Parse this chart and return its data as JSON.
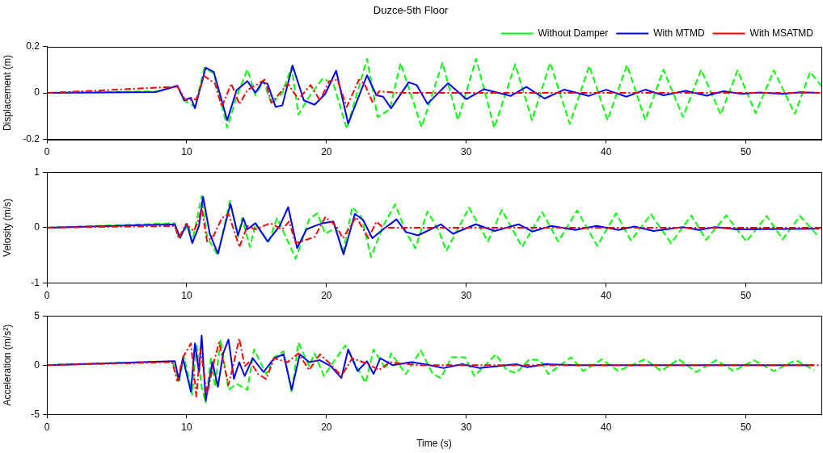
{
  "chart_data": [
    {
      "type": "line",
      "title": "Duzce-5th Floor",
      "ylabel": "Displacement (m)",
      "xlim": [
        0,
        55.4
      ],
      "xticks": [
        0,
        10,
        20,
        30,
        40,
        50
      ],
      "ylim": [
        -0.2,
        0.2
      ],
      "yticks": [
        -0.2,
        0,
        0.2
      ],
      "legend": "top right",
      "marker": "none",
      "series": [
        {
          "name": "Without Damper",
          "color": "#00ff00",
          "line_style": "dashed",
          "x": [
            0,
            7.8,
            9.34,
            9.82,
            10.59,
            11.26,
            11.94,
            12.9,
            13.57,
            14.34,
            14.92,
            15.5,
            16.07,
            16.84,
            17.51,
            17.99,
            18.76,
            19.72,
            20.49,
            21.45,
            22.9,
            23.66,
            24.53,
            25.3,
            26.8,
            28.3,
            29.4,
            30.7,
            32.0,
            33.5,
            34.7,
            36.0,
            37.4,
            38.8,
            40.1,
            41.5,
            42.8,
            44.1,
            45.5,
            46.8,
            48.2,
            49.4,
            50.7,
            52.0,
            53.5,
            54.6,
            55.4
          ],
          "values": [
            0,
            0.007,
            0.029,
            -0.032,
            -0.06,
            0.107,
            0.084,
            -0.149,
            -0.016,
            0.101,
            -0.01,
            0.051,
            -0.049,
            0.001,
            0.112,
            -0.093,
            -0.016,
            0.062,
            0.04,
            -0.154,
            0.146,
            -0.104,
            -0.071,
            0.129,
            -0.147,
            0.13,
            -0.117,
            0.147,
            -0.15,
            0.123,
            -0.117,
            0.13,
            -0.133,
            0.117,
            -0.117,
            0.12,
            -0.117,
            0.1,
            -0.103,
            0.1,
            -0.093,
            0.097,
            -0.087,
            0.097,
            -0.09,
            0.09,
            0.03
          ]
        },
        {
          "name": "With MTMD",
          "color": "#0000ff",
          "line_style": "solid",
          "x": [
            0,
            7.8,
            9.34,
            9.82,
            10.3,
            10.59,
            11.36,
            11.94,
            12.9,
            13.57,
            14.34,
            14.92,
            15.4,
            15.78,
            16.36,
            16.84,
            17.57,
            18.38,
            19.15,
            19.91,
            20.69,
            21.55,
            22.9,
            23.57,
            24.05,
            24.62,
            25.88,
            26.45,
            27.22,
            28.7,
            30.0,
            31.26,
            33.17,
            34.3,
            35.6,
            37.0,
            38.75,
            40.0,
            41.45,
            42.8,
            44.1,
            45.7,
            47.2,
            48.4,
            49.7,
            51.0,
            52.6,
            53.9,
            55.3
          ],
          "values": [
            0,
            0.004,
            0.031,
            -0.032,
            -0.021,
            -0.066,
            0.109,
            0.09,
            -0.118,
            0.012,
            0.051,
            0.001,
            0.046,
            0.04,
            -0.06,
            -0.054,
            0.118,
            -0.032,
            -0.051,
            -0.004,
            0.096,
            -0.132,
            0.076,
            -0.01,
            -0.016,
            -0.066,
            0.046,
            0.034,
            -0.047,
            0.042,
            -0.027,
            0.016,
            -0.013,
            0.026,
            -0.024,
            0.014,
            -0.013,
            0.014,
            -0.016,
            0.014,
            -0.01,
            0.009,
            -0.012,
            0.007,
            -0.004,
            0.002,
            -0.004,
            0.003,
            0
          ]
        },
        {
          "name": "With MSATMD",
          "color": "#ff0000",
          "line_style": "dashdot",
          "x": [
            0,
            9.34,
            9.92,
            10.69,
            11.26,
            12.03,
            12.51,
            13.19,
            13.77,
            14.34,
            15.59,
            16.07,
            17.23,
            17.99,
            18.86,
            19.53,
            20.2,
            20.78,
            21.45,
            22.32,
            22.71,
            23.28,
            23.76,
            25.3,
            55.4
          ],
          "values": [
            0,
            0.027,
            -0.032,
            -0.027,
            0.073,
            0.04,
            -0.06,
            0.04,
            -0.049,
            0.012,
            0.057,
            -0.043,
            0.04,
            -0.027,
            0.034,
            -0.032,
            0.051,
            0.057,
            -0.06,
            0.057,
            0.04,
            -0.038,
            0.007,
            0,
            0
          ]
        }
      ]
    },
    {
      "type": "line",
      "ylabel": "Velosity (m/s)",
      "xlim": [
        0,
        55.4
      ],
      "xticks": [
        0,
        10,
        20,
        30,
        40,
        50
      ],
      "ylim": [
        -1,
        1
      ],
      "yticks": [
        -1,
        0,
        1
      ],
      "marker": "none",
      "series": [
        {
          "color": "#00ff00",
          "line_style": "dashed",
          "x": [
            0,
            9.15,
            9.44,
            10.11,
            10.4,
            11.07,
            11.46,
            12.23,
            13.09,
            13.67,
            13.96,
            14.53,
            14.92,
            15.88,
            16.46,
            16.84,
            17.8,
            18.76,
            19.34,
            19.91,
            20.69,
            21.17,
            21.84,
            22.51,
            23.18,
            24.05,
            24.91,
            25.68,
            26.36,
            27.22,
            27.99,
            28.57,
            30.2,
            31.54,
            32.55,
            33.99,
            35.43,
            36.58,
            37.93,
            39.37,
            40.71,
            41.77,
            43.21,
            44.65,
            46.1,
            47.15,
            48.6,
            50.04,
            51.48,
            52.63,
            53.88,
            55.23
          ],
          "values": [
            0,
            0.08,
            -0.21,
            0.06,
            -0.25,
            0.57,
            -0.17,
            -0.5,
            0.48,
            -0.17,
            0.17,
            -0.35,
            0.06,
            -0.25,
            0.17,
            -0.03,
            -0.56,
            0.15,
            0.26,
            -0.11,
            0,
            -0.47,
            0.37,
            0.19,
            -0.53,
            0.03,
            0.42,
            -0.08,
            -0.37,
            0.29,
            -0.03,
            -0.42,
            0.36,
            -0.25,
            0.32,
            -0.35,
            0.28,
            -0.25,
            0.31,
            -0.33,
            0.26,
            -0.23,
            0.24,
            -0.28,
            0.22,
            -0.22,
            0.22,
            -0.25,
            0.21,
            -0.21,
            0.21,
            -0.17
          ]
        },
        {
          "color": "#0000ff",
          "line_style": "solid",
          "x": [
            0,
            9.15,
            9.53,
            10.01,
            10.4,
            10.88,
            11.17,
            11.65,
            12.23,
            13.13,
            13.67,
            14.05,
            14.34,
            14.92,
            15.78,
            16.65,
            17.26,
            17.9,
            18.57,
            19.15,
            19.72,
            20.49,
            21.22,
            22.03,
            22.61,
            23.28,
            24.05,
            25.01,
            25.68,
            26.55,
            28.18,
            29.05,
            30.68,
            32.03,
            33.76,
            34.72,
            36.07,
            37.8,
            39.33,
            40.87,
            42.03,
            43.38,
            45.49,
            46.64,
            47.8,
            49.34,
            55.23
          ],
          "values": [
            0,
            0.06,
            -0.18,
            0.07,
            -0.28,
            0.03,
            0.56,
            -0.11,
            -0.47,
            0.43,
            -0.14,
            0.17,
            -0.03,
            0.08,
            -0.25,
            0.03,
            0.37,
            -0.37,
            -0.03,
            0.03,
            0.08,
            0.11,
            -0.48,
            0.25,
            0.14,
            -0.19,
            -0.03,
            0.15,
            -0.08,
            -0.14,
            0.06,
            -0.11,
            0.06,
            -0.06,
            0.06,
            -0.07,
            0.03,
            -0.04,
            0.03,
            -0.04,
            0.02,
            -0.06,
            0.01,
            -0.04,
            0.01,
            -0.03,
            -0.02
          ]
        },
        {
          "color": "#ff0000",
          "line_style": "dashdot",
          "x": [
            0,
            9.15,
            9.44,
            9.92,
            10.5,
            10.78,
            11.07,
            11.46,
            11.94,
            12.51,
            12.99,
            13.77,
            14.34,
            14.92,
            15.97,
            16.84,
            17.32,
            17.8,
            19.15,
            19.91,
            20.69,
            21.17,
            22.13,
            23.0,
            23.57,
            24.05,
            55.4
          ],
          "values": [
            0,
            0.03,
            -0.19,
            0.06,
            -0.06,
            0.08,
            0.36,
            -0.25,
            -0.14,
            0.17,
            0.25,
            -0.35,
            0.03,
            -0.03,
            0.08,
            -0.03,
            0.11,
            -0.28,
            -0.17,
            0.19,
            0.03,
            -0.19,
            0.19,
            -0.19,
            0.11,
            0,
            0
          ]
        }
      ]
    },
    {
      "type": "line",
      "xlabel": "Time (s)",
      "ylabel": "Acceleration (m/s²)",
      "xlim": [
        0,
        55.4
      ],
      "xticks": [
        0,
        10,
        20,
        30,
        40,
        50
      ],
      "ylim": [
        -5,
        5
      ],
      "yticks": [
        -5,
        0,
        5
      ],
      "marker": "none",
      "series": [
        {
          "color": "#00ff00",
          "line_style": "dashed",
          "x": [
            0,
            8.96,
            9.44,
            9.82,
            10.4,
            10.69,
            11.07,
            11.36,
            11.74,
            12.03,
            12.42,
            12.99,
            13.57,
            14.34,
            14.82,
            15.68,
            16.26,
            16.93,
            17.51,
            17.99,
            18.76,
            19.14,
            19.82,
            20.49,
            21.35,
            22.22,
            22.8,
            23.37,
            24.24,
            24.62,
            25.68,
            26.74,
            27.6,
            28.18,
            28.95,
            29.91,
            30.58,
            32.12,
            32.89,
            33.56,
            34.52,
            35.29,
            35.87,
            37.5,
            38.36,
            39.71,
            40.86,
            42.79,
            43.94,
            45.19,
            46.44,
            47.88,
            49.13,
            50.57,
            52.01,
            53.55,
            54.89
          ],
          "values": [
            0,
            0.4,
            -1.6,
            0.8,
            -3.0,
            2.2,
            -2.2,
            -3.8,
            0.8,
            -2.2,
            2.6,
            -2.5,
            -1.9,
            -2.5,
            1.6,
            -0.9,
            0.8,
            1.4,
            -2.8,
            2.3,
            -0.1,
            1.2,
            -1.1,
            0.3,
            2.0,
            -0.3,
            -1.8,
            1.6,
            -0.4,
            1.2,
            -0.9,
            1.5,
            -0.9,
            -1.3,
            0.8,
            0.8,
            -1.1,
            1.1,
            -0.5,
            -0.8,
            0.6,
            0.5,
            -0.9,
            0.8,
            -0.6,
            0.6,
            -0.6,
            0.6,
            -0.6,
            0.6,
            -0.7,
            0.5,
            -0.6,
            0.5,
            -0.6,
            0.5,
            -0.5
          ]
        },
        {
          "color": "#0000ff",
          "line_style": "solid",
          "x": [
            0,
            9.15,
            9.44,
            9.73,
            10.3,
            10.59,
            10.88,
            11.07,
            11.36,
            11.84,
            12.23,
            12.61,
            12.99,
            13.38,
            13.76,
            14.15,
            14.72,
            15.49,
            16.26,
            16.93,
            17.51,
            18.09,
            18.76,
            19.53,
            20.3,
            21.07,
            21.55,
            22.22,
            22.89,
            23.37,
            23.85,
            24.72,
            26.06,
            27.02,
            28.37,
            29.71,
            30.96,
            33.56,
            34.33,
            35.67,
            37.79,
            54.89
          ],
          "values": [
            0,
            0.4,
            -1.5,
            0.7,
            -2.7,
            2.2,
            -0.7,
            3.0,
            -3.6,
            0.3,
            -2.2,
            1.2,
            2.6,
            -1.4,
            0.3,
            -1.1,
            0.7,
            -0.7,
            0.7,
            1.1,
            -2.5,
            1.1,
            0.3,
            0.5,
            -0.1,
            -1.3,
            1.6,
            -0.6,
            0.4,
            -0.9,
            0.7,
            0,
            0.3,
            0.1,
            -0.3,
            0.1,
            -0.3,
            0.1,
            -0.2,
            0.1,
            0,
            0
          ]
        },
        {
          "color": "#ff0000",
          "line_style": "dashdot",
          "x": [
            0,
            8.96,
            9.34,
            9.73,
            10.3,
            10.69,
            10.98,
            11.46,
            11.94,
            12.32,
            12.99,
            13.38,
            13.76,
            14.15,
            14.53,
            15.11,
            15.68,
            16.26,
            17.22,
            17.99,
            18.76,
            19.53,
            20.3,
            21.07,
            21.84,
            22.99,
            23.76,
            24.53,
            26.45,
            55.4
          ],
          "values": [
            0,
            0.3,
            -1.6,
            0.8,
            2.2,
            -3.2,
            1.6,
            -3.0,
            0.3,
            2.3,
            -2.0,
            0.3,
            2.7,
            -0.1,
            0.4,
            -0.9,
            -1.4,
            0.7,
            0.3,
            1.2,
            -0.5,
            1.1,
            0.1,
            -1.1,
            0.7,
            0.1,
            -0.5,
            0.3,
            0,
            0
          ]
        }
      ]
    }
  ]
}
